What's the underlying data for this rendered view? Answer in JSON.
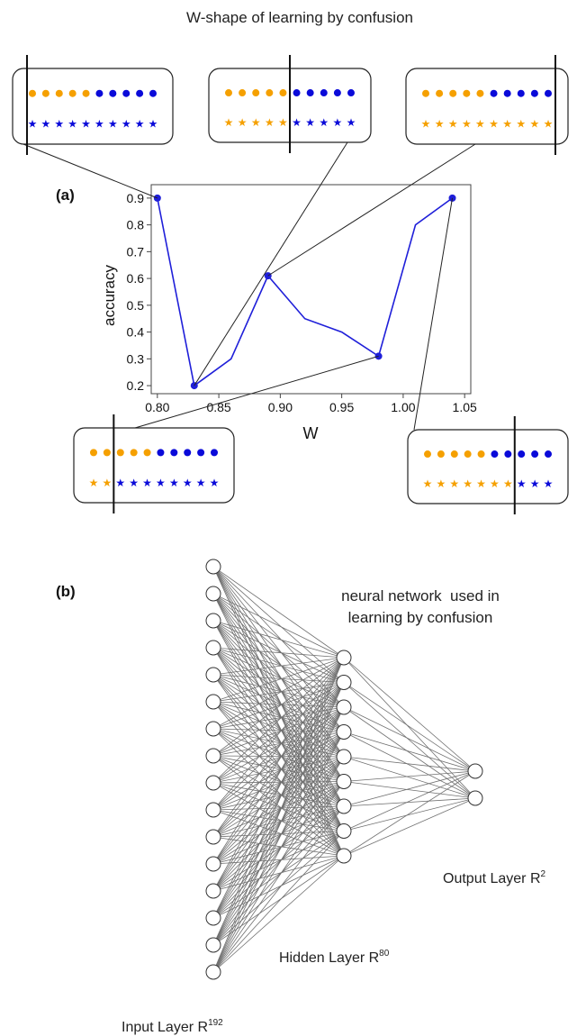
{
  "title": "W-shape of learning by confusion",
  "panel_a": {
    "label": "(a)",
    "chart_data": {
      "type": "line",
      "xlabel": "W",
      "ylabel": "accuracy",
      "x": [
        0.8,
        0.83,
        0.86,
        0.89,
        0.92,
        0.95,
        0.98,
        1.01,
        1.04
      ],
      "y": [
        0.9,
        0.2,
        0.3,
        0.61,
        0.45,
        0.4,
        0.31,
        0.8,
        0.9
      ],
      "highlighted_x": [
        0.8,
        0.83,
        0.89,
        0.98,
        1.04
      ],
      "xlim": [
        0.795,
        1.055
      ],
      "ylim": [
        0.17,
        0.95
      ],
      "xticks": [
        "0.80",
        "0.85",
        "0.90",
        "0.95",
        "1.00",
        "1.05"
      ],
      "yticks": [
        "0.2",
        "0.3",
        "0.4",
        "0.5",
        "0.6",
        "0.7",
        "0.8",
        "0.9"
      ],
      "line_color": "#1f1fd9",
      "grid": false
    },
    "colors": {
      "phase_a": "#f5a000",
      "phase_b": "#0a0ad9"
    },
    "insets": [
      {
        "name": "inset-top-left",
        "top": {
          "orange": 5,
          "blue": 5
        },
        "bottom": {
          "orange": 0,
          "blue": 10
        },
        "cut": 0
      },
      {
        "name": "inset-top-center",
        "top": {
          "orange": 5,
          "blue": 5
        },
        "bottom": {
          "orange": 5,
          "blue": 5
        },
        "cut": 5
      },
      {
        "name": "inset-top-right",
        "top": {
          "orange": 5,
          "blue": 5
        },
        "bottom": {
          "orange": 10,
          "blue": 0
        },
        "cut": 10
      },
      {
        "name": "inset-bottom-left",
        "top": {
          "orange": 5,
          "blue": 5
        },
        "bottom": {
          "orange": 2,
          "blue": 8
        },
        "cut": 2
      },
      {
        "name": "inset-bottom-right",
        "top": {
          "orange": 5,
          "blue": 5
        },
        "bottom": {
          "orange": 7,
          "blue": 3
        },
        "cut": 7
      }
    ]
  },
  "panel_b": {
    "label": "(b)",
    "caption_line1": "neural network  used in",
    "caption_line2": "learning by confusion",
    "input_layer": {
      "label": "Input Layer R",
      "sup": "192",
      "drawn_nodes": 16
    },
    "hidden_layer": {
      "label": "Hidden Layer R",
      "sup": "80",
      "drawn_nodes": 9
    },
    "output_layer": {
      "label": "Output Layer R",
      "sup": "2",
      "drawn_nodes": 2
    }
  }
}
